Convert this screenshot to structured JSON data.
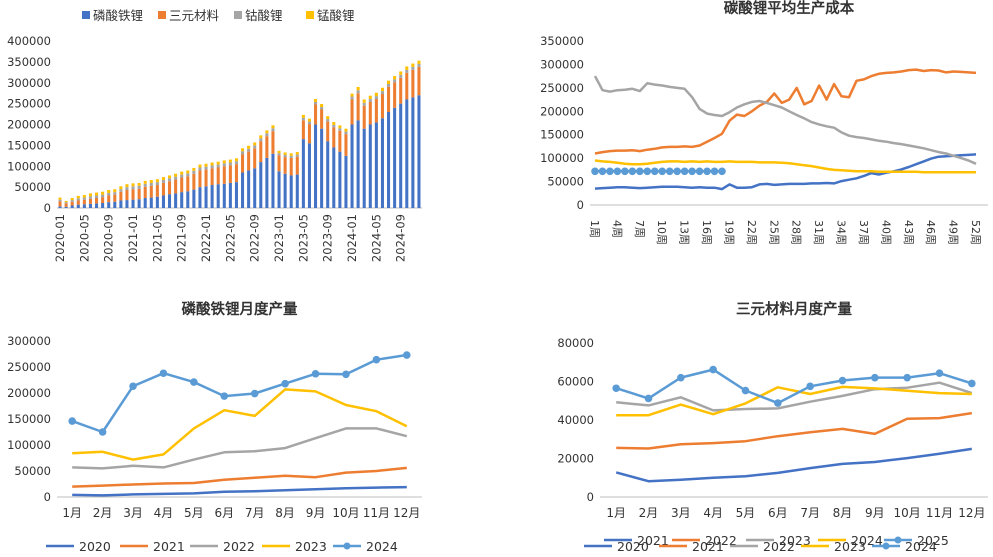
{
  "charts": [
    {
      "type": "bar",
      "stacked": true,
      "title": "",
      "legend": {
        "position": "top",
        "items": [
          {
            "name": "磷酸铁锂",
            "color": "#4472C4"
          },
          {
            "name": "三元材料",
            "color": "#ED7D31"
          },
          {
            "name": "钴酸锂",
            "color": "#A5A5A5"
          },
          {
            "name": "锰酸锂",
            "color": "#FFC000"
          }
        ]
      },
      "ylim": [
        0,
        400000
      ],
      "yticks": [
        "0",
        "50000",
        "100000",
        "150000",
        "200000",
        "250000",
        "300000",
        "350000",
        "400000"
      ],
      "ytick_values": [
        0,
        50000,
        100000,
        150000,
        200000,
        250000,
        300000,
        350000,
        400000
      ],
      "grid": false,
      "xtick_labels": [
        "2020-01",
        "2020-05",
        "2020-09",
        "2021-01",
        "2021-05",
        "2021-09",
        "2022-01",
        "2022-05",
        "2022-09",
        "2023-01",
        "2023-05",
        "2023-09",
        "2024-01",
        "2024-05",
        "2024-09"
      ],
      "categories": [
        "2020-01",
        "2020-02",
        "2020-03",
        "2020-04",
        "2020-05",
        "2020-06",
        "2020-07",
        "2020-08",
        "2020-09",
        "2020-10",
        "2020-11",
        "2020-12",
        "2021-01",
        "2021-02",
        "2021-03",
        "2021-04",
        "2021-05",
        "2021-06",
        "2021-07",
        "2021-08",
        "2021-09",
        "2021-10",
        "2021-11",
        "2021-12",
        "2022-01",
        "2022-02",
        "2022-03",
        "2022-04",
        "2022-05",
        "2022-06",
        "2022-07",
        "2022-08",
        "2022-09",
        "2022-10",
        "2022-11",
        "2022-12",
        "2023-01",
        "2023-02",
        "2023-03",
        "2023-04",
        "2023-05",
        "2023-06",
        "2023-07",
        "2023-08",
        "2023-09",
        "2023-10",
        "2023-11",
        "2023-12",
        "2024-01",
        "2024-02",
        "2024-03",
        "2024-04",
        "2024-05",
        "2024-06",
        "2024-07",
        "2024-08",
        "2024-09",
        "2024-10",
        "2024-11",
        "2024-12"
      ],
      "series": [
        {
          "name": "磷酸铁锂",
          "color": "#4472C4",
          "values": [
            4000,
            3000,
            6000,
            8000,
            9000,
            10000,
            11000,
            12000,
            14000,
            15000,
            18000,
            19000,
            20000,
            21000,
            24000,
            25000,
            27000,
            30000,
            33000,
            35000,
            38000,
            40000,
            44000,
            50000,
            52000,
            55000,
            57000,
            58000,
            60000,
            62000,
            85000,
            90000,
            95000,
            110000,
            120000,
            130000,
            88000,
            82000,
            78000,
            80000,
            165000,
            155000,
            200000,
            190000,
            160000,
            145000,
            135000,
            125000,
            200000,
            210000,
            190000,
            200000,
            205000,
            215000,
            230000,
            240000,
            250000,
            260000,
            265000,
            270000
          ]
        },
        {
          "name": "三元材料",
          "color": "#ED7D31",
          "values": [
            12000,
            8000,
            9000,
            10000,
            11000,
            12000,
            13000,
            14000,
            16000,
            17000,
            21000,
            24000,
            25000,
            25000,
            27000,
            28000,
            28000,
            30000,
            31000,
            33000,
            35000,
            36000,
            38000,
            40000,
            40000,
            40000,
            40000,
            42000,
            42000,
            43000,
            44000,
            45000,
            48000,
            50000,
            52000,
            54000,
            38000,
            40000,
            42000,
            43000,
            45000,
            46000,
            48000,
            46000,
            47000,
            48000,
            50000,
            52000,
            60000,
            65000,
            55000,
            54000,
            56000,
            58000,
            60000,
            61000,
            62000,
            64000,
            66000,
            68000
          ]
        },
        {
          "name": "钴酸锂",
          "color": "#A5A5A5",
          "values": [
            4000,
            3000,
            4000,
            5000,
            5000,
            6000,
            6000,
            6000,
            6000,
            6000,
            6000,
            7000,
            7000,
            7000,
            7000,
            7000,
            7000,
            7000,
            7000,
            7000,
            7000,
            7000,
            7000,
            7000,
            7000,
            7000,
            7000,
            7000,
            7000,
            7000,
            7000,
            7000,
            7000,
            7000,
            7000,
            7000,
            5000,
            5000,
            5000,
            5000,
            6000,
            6000,
            6000,
            6000,
            6000,
            6000,
            6000,
            6000,
            7000,
            7000,
            7000,
            7000,
            7000,
            7000,
            7000,
            7000,
            7000,
            7000,
            7000,
            7000
          ]
        },
        {
          "name": "锰酸锂",
          "color": "#FFC000",
          "values": [
            5000,
            3000,
            5000,
            6000,
            6000,
            7000,
            7000,
            7000,
            7000,
            7000,
            7000,
            7000,
            7000,
            7000,
            7000,
            7000,
            7000,
            7000,
            7000,
            7000,
            7000,
            7000,
            7000,
            7000,
            7000,
            7000,
            7000,
            7000,
            7000,
            7000,
            7000,
            7000,
            7000,
            7000,
            7000,
            7000,
            6000,
            6000,
            6000,
            6000,
            7000,
            7000,
            7000,
            7000,
            7000,
            7000,
            7000,
            7000,
            7000,
            8000,
            8000,
            8000,
            8000,
            8000,
            8000,
            8000,
            8000,
            8000,
            8000,
            8000
          ]
        }
      ]
    },
    {
      "type": "line",
      "title": "碳酸锂平均生产成本",
      "legend": {
        "position": "bottom"
      },
      "ylim": [
        0,
        350000
      ],
      "yticks": [
        "0",
        "50000",
        "100000",
        "150000",
        "200000",
        "250000",
        "300000",
        "350000"
      ],
      "ytick_values": [
        0,
        50000,
        100000,
        150000,
        200000,
        250000,
        300000,
        350000
      ],
      "xtick_labels": [
        "1周",
        "4周",
        "7周",
        "10周",
        "13周",
        "16周",
        "19周",
        "22周",
        "25周",
        "28周",
        "31周",
        "34周",
        "37周",
        "40周",
        "43周",
        "46周",
        "49周",
        "52周"
      ],
      "series": [
        {
          "name": "2021",
          "color": "#4472C4",
          "markers": false,
          "values": [
            35000,
            36000,
            37000,
            38000,
            38000,
            37000,
            36000,
            37000,
            38000,
            39000,
            39000,
            39000,
            38000,
            37000,
            38000,
            37000,
            37000,
            34000,
            44000,
            37000,
            37000,
            38000,
            44000,
            45000,
            43000,
            44000,
            45000,
            45000,
            45000,
            46000,
            46000,
            47000,
            46000,
            51000,
            54000,
            57000,
            62000,
            68000,
            65000,
            69000,
            72000,
            76000,
            81000,
            87000,
            93000,
            99000,
            103000,
            104000,
            105000,
            106000,
            107000,
            108000
          ]
        },
        {
          "name": "2022",
          "color": "#ED7D31",
          "markers": false,
          "values": [
            110000,
            113000,
            115000,
            116000,
            116000,
            117000,
            115000,
            118000,
            120000,
            123000,
            124000,
            124000,
            125000,
            124000,
            127000,
            135000,
            143000,
            152000,
            180000,
            193000,
            190000,
            200000,
            212000,
            220000,
            238000,
            218000,
            225000,
            250000,
            215000,
            222000,
            255000,
            225000,
            258000,
            232000,
            230000,
            265000,
            268000,
            275000,
            280000,
            282000,
            283000,
            285000,
            288000,
            289000,
            286000,
            288000,
            287000,
            283000,
            285000,
            284000,
            283000,
            282000
          ]
        },
        {
          "name": "2023",
          "color": "#A5A5A5",
          "markers": false,
          "values": [
            275000,
            245000,
            242000,
            245000,
            246000,
            248000,
            243000,
            260000,
            257000,
            255000,
            252000,
            250000,
            248000,
            230000,
            205000,
            195000,
            192000,
            190000,
            198000,
            208000,
            215000,
            220000,
            222000,
            218000,
            213000,
            208000,
            200000,
            192000,
            185000,
            177000,
            172000,
            168000,
            165000,
            155000,
            148000,
            145000,
            143000,
            140000,
            137000,
            135000,
            132000,
            130000,
            127000,
            124000,
            121000,
            117000,
            113000,
            110000,
            105000,
            100000,
            95000,
            88000
          ]
        },
        {
          "name": "2024",
          "color": "#FFC000",
          "markers": false,
          "values": [
            95000,
            93000,
            92000,
            90000,
            88000,
            87000,
            87000,
            88000,
            90000,
            92000,
            93000,
            93000,
            92000,
            93000,
            92000,
            93000,
            92000,
            92000,
            93000,
            92000,
            92000,
            92000,
            91000,
            91000,
            91000,
            90000,
            89000,
            87000,
            85000,
            83000,
            80000,
            77000,
            75000,
            74000,
            73000,
            72000,
            72000,
            72000,
            71000,
            71000,
            71000,
            71000,
            71000,
            71000,
            70000,
            70000,
            70000,
            70000,
            70000,
            70000,
            70000,
            70000
          ]
        },
        {
          "name": "2025",
          "color": "#5B9BD5",
          "markers": true,
          "values": [
            72000,
            72000,
            72000,
            72000,
            72000,
            72000,
            72000,
            72000,
            72000,
            72000,
            72000,
            72000,
            72000,
            72000,
            72000,
            72000,
            72000,
            72000
          ]
        }
      ]
    },
    {
      "type": "line",
      "title": "磷酸铁锂月度产量",
      "legend": {
        "position": "bottom"
      },
      "ylim": [
        0,
        300000
      ],
      "yticks": [
        "0",
        "50000",
        "100000",
        "150000",
        "200000",
        "250000",
        "300000"
      ],
      "ytick_values": [
        0,
        50000,
        100000,
        150000,
        200000,
        250000,
        300000
      ],
      "categories": [
        "1月",
        "2月",
        "3月",
        "4月",
        "5月",
        "6月",
        "7月",
        "8月",
        "9月",
        "10月",
        "11月",
        "12月"
      ],
      "series": [
        {
          "name": "2020",
          "color": "#4472C4",
          "markers": false,
          "values": [
            4000,
            3000,
            5000,
            6000,
            7000,
            10000,
            11000,
            13000,
            15000,
            17000,
            18000,
            19000
          ]
        },
        {
          "name": "2021",
          "color": "#ED7D31",
          "markers": false,
          "values": [
            20000,
            22000,
            24000,
            26000,
            27000,
            33000,
            37000,
            41000,
            38000,
            47000,
            50000,
            56000
          ]
        },
        {
          "name": "2022",
          "color": "#A5A5A5",
          "markers": false,
          "values": [
            57000,
            55000,
            60000,
            57000,
            72000,
            86000,
            88000,
            94000,
            113000,
            132000,
            132000,
            117000
          ]
        },
        {
          "name": "2023",
          "color": "#FFC000",
          "markers": false,
          "values": [
            84000,
            87000,
            72000,
            82000,
            132000,
            167000,
            156000,
            207000,
            203000,
            177000,
            165000,
            136000
          ]
        },
        {
          "name": "2024",
          "color": "#5B9BD5",
          "markers": true,
          "values": [
            146000,
            125000,
            213000,
            238000,
            221000,
            194000,
            199000,
            218000,
            237000,
            236000,
            264000,
            273000
          ]
        }
      ]
    },
    {
      "type": "line",
      "title": "三元材料月度产量",
      "legend": {
        "position": "bottom"
      },
      "ylim": [
        0,
        80000
      ],
      "yticks": [
        "0",
        "20000",
        "40000",
        "60000",
        "80000"
      ],
      "ytick_values": [
        0,
        20000,
        40000,
        60000,
        80000
      ],
      "categories": [
        "1月",
        "2月",
        "3月",
        "4月",
        "5月",
        "6月",
        "7月",
        "8月",
        "9月",
        "10月",
        "11月",
        "12月"
      ],
      "series": [
        {
          "name": "2020",
          "color": "#4472C4",
          "markers": false,
          "values": [
            12800,
            8200,
            9000,
            10000,
            10800,
            12500,
            15000,
            17200,
            18200,
            20200,
            22500,
            25000
          ]
        },
        {
          "name": "2021",
          "color": "#ED7D31",
          "markers": false,
          "values": [
            25500,
            25200,
            27400,
            28000,
            29000,
            31600,
            33600,
            35400,
            32800,
            40600,
            41000,
            43600
          ]
        },
        {
          "name": "2022",
          "color": "#A5A5A5",
          "markers": false,
          "values": [
            49200,
            47600,
            51800,
            45000,
            45700,
            46000,
            49500,
            52500,
            56000,
            56800,
            59400,
            54000
          ]
        },
        {
          "name": "2023",
          "color": "#FFC000",
          "markers": false,
          "values": [
            42500,
            42500,
            48000,
            43000,
            48600,
            57000,
            53500,
            57200,
            56400,
            55200,
            54000,
            53500
          ]
        },
        {
          "name": "2024",
          "color": "#5B9BD5",
          "markers": true,
          "values": [
            56500,
            51200,
            62000,
            66200,
            55300,
            48800,
            57500,
            60500,
            62000,
            62000,
            64300,
            59000
          ]
        }
      ]
    }
  ]
}
